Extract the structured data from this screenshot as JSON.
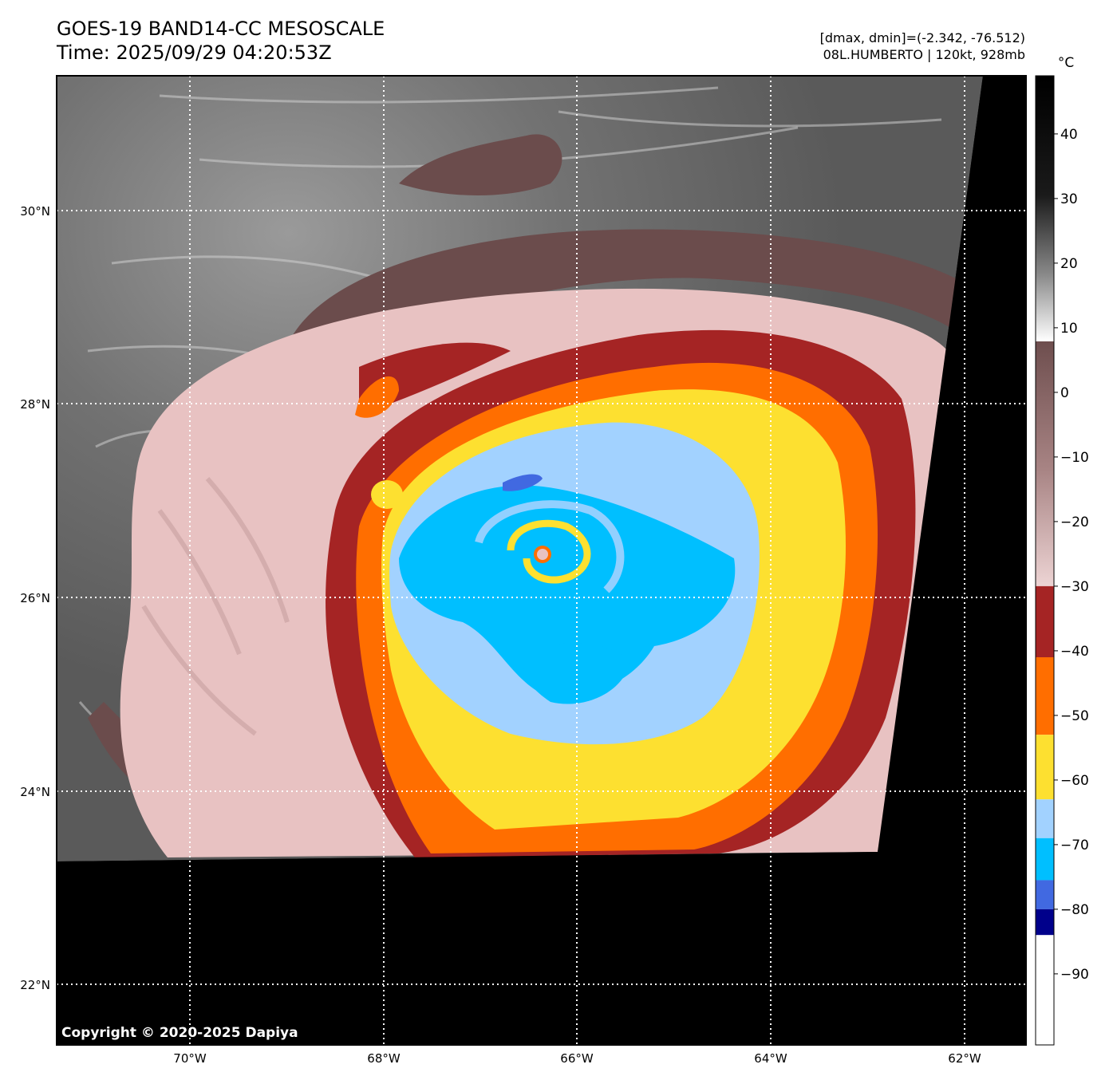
{
  "header": {
    "title": "GOES-19 BAND14-CC MESOSCALE",
    "time": "Time: 2025/09/29 04:20:53Z",
    "dmax_dmin": "[dmax, dmin]=(-2.342, -76.512)",
    "storm": "08L.HUMBERTO | 120kt, 928mb"
  },
  "map": {
    "latitude_labels": [
      "30°N",
      "28°N",
      "26°N",
      "24°N",
      "22°N"
    ],
    "longitude_labels": [
      "70°W",
      "68°W",
      "66°W",
      "64°W",
      "62°W"
    ],
    "copyright": "Copyright © 2020-2025 Dapiya"
  },
  "colorbar": {
    "unit": "°C",
    "tick_labels": [
      "40",
      "30",
      "20",
      "10",
      "0",
      "−10",
      "−20",
      "−30",
      "−40",
      "−50",
      "−60",
      "−70",
      "−80",
      "−90"
    ],
    "segments": [
      {
        "from": 9,
        "to": -30,
        "color": "#f2d8d8"
      },
      {
        "from": -30,
        "to": -41,
        "color": "#a52424"
      },
      {
        "from": -41,
        "to": -53,
        "color": "#ff6e00"
      },
      {
        "from": -53,
        "to": -63,
        "color": "#fde030"
      },
      {
        "from": -63,
        "to": -69,
        "color": "#a2d2ff"
      },
      {
        "from": -69,
        "to": -75.5,
        "color": "#00bfff"
      },
      {
        "from": -75.5,
        "to": -80,
        "color": "#4169e1"
      },
      {
        "from": -80,
        "to": -84,
        "color": "#00008b"
      },
      {
        "from": -84,
        "to": -100,
        "color": "#ffffff"
      }
    ],
    "colors": {
      "brown_upper": "#7a5454",
      "pink_lower": "#f2d8d8",
      "gray_light": "#ffffff",
      "gray_dark": "#000000"
    }
  },
  "colors": {
    "cirrus_gray": "#6e6e6e",
    "cirrus_brown": "#6b4c4c",
    "cloud_pink": "#e8c2c2",
    "red": "#a52424",
    "orange": "#ff6e00",
    "yellow": "#fde030",
    "light_blue": "#a2d2ff",
    "cyan": "#00bfff",
    "royal_blue": "#4169e1",
    "no_data": "#000000"
  }
}
